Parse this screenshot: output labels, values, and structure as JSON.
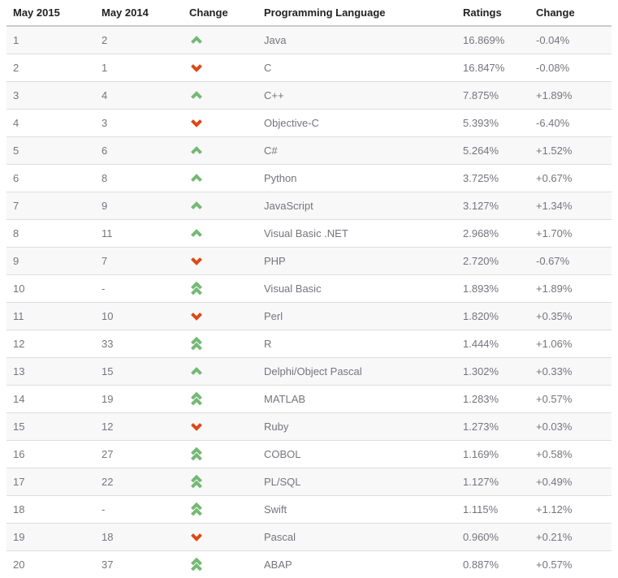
{
  "table": {
    "headers": {
      "rank_2015": "May 2015",
      "rank_2014": "May 2014",
      "change_arrow": "Change",
      "language": "Programming Language",
      "ratings": "Ratings",
      "change_pct": "Change"
    },
    "rows": [
      {
        "rank_2015": "1",
        "rank_2014": "2",
        "direction": "up",
        "language": "Java",
        "ratings": "16.869%",
        "change": "-0.04%"
      },
      {
        "rank_2015": "2",
        "rank_2014": "1",
        "direction": "down",
        "language": "C",
        "ratings": "16.847%",
        "change": "-0.08%"
      },
      {
        "rank_2015": "3",
        "rank_2014": "4",
        "direction": "up",
        "language": "C++",
        "ratings": "7.875%",
        "change": "+1.89%"
      },
      {
        "rank_2015": "4",
        "rank_2014": "3",
        "direction": "down",
        "language": "Objective-C",
        "ratings": "5.393%",
        "change": "-6.40%"
      },
      {
        "rank_2015": "5",
        "rank_2014": "6",
        "direction": "up",
        "language": "C#",
        "ratings": "5.264%",
        "change": "+1.52%"
      },
      {
        "rank_2015": "6",
        "rank_2014": "8",
        "direction": "up",
        "language": "Python",
        "ratings": "3.725%",
        "change": "+0.67%"
      },
      {
        "rank_2015": "7",
        "rank_2014": "9",
        "direction": "up",
        "language": "JavaScript",
        "ratings": "3.127%",
        "change": "+1.34%"
      },
      {
        "rank_2015": "8",
        "rank_2014": "11",
        "direction": "up",
        "language": "Visual Basic .NET",
        "ratings": "2.968%",
        "change": "+1.70%"
      },
      {
        "rank_2015": "9",
        "rank_2014": "7",
        "direction": "down",
        "language": "PHP",
        "ratings": "2.720%",
        "change": "-0.67%"
      },
      {
        "rank_2015": "10",
        "rank_2014": "-",
        "direction": "up2",
        "language": "Visual Basic",
        "ratings": "1.893%",
        "change": "+1.89%"
      },
      {
        "rank_2015": "11",
        "rank_2014": "10",
        "direction": "down",
        "language": "Perl",
        "ratings": "1.820%",
        "change": "+0.35%"
      },
      {
        "rank_2015": "12",
        "rank_2014": "33",
        "direction": "up2",
        "language": "R",
        "ratings": "1.444%",
        "change": "+1.06%"
      },
      {
        "rank_2015": "13",
        "rank_2014": "15",
        "direction": "up",
        "language": "Delphi/Object Pascal",
        "ratings": "1.302%",
        "change": "+0.33%"
      },
      {
        "rank_2015": "14",
        "rank_2014": "19",
        "direction": "up2",
        "language": "MATLAB",
        "ratings": "1.283%",
        "change": "+0.57%"
      },
      {
        "rank_2015": "15",
        "rank_2014": "12",
        "direction": "down",
        "language": "Ruby",
        "ratings": "1.273%",
        "change": "+0.03%"
      },
      {
        "rank_2015": "16",
        "rank_2014": "27",
        "direction": "up2",
        "language": "COBOL",
        "ratings": "1.169%",
        "change": "+0.58%"
      },
      {
        "rank_2015": "17",
        "rank_2014": "22",
        "direction": "up2",
        "language": "PL/SQL",
        "ratings": "1.127%",
        "change": "+0.49%"
      },
      {
        "rank_2015": "18",
        "rank_2014": "-",
        "direction": "up2",
        "language": "Swift",
        "ratings": "1.115%",
        "change": "+1.12%"
      },
      {
        "rank_2015": "19",
        "rank_2014": "18",
        "direction": "down",
        "language": "Pascal",
        "ratings": "0.960%",
        "change": "+0.21%"
      },
      {
        "rank_2015": "20",
        "rank_2014": "37",
        "direction": "up2",
        "language": "ABAP",
        "ratings": "0.887%",
        "change": "+0.57%"
      }
    ]
  },
  "icons": {
    "up": "chevron-up-icon",
    "down": "chevron-down-icon",
    "up2": "double-chevron-up-icon"
  },
  "colors": {
    "up_arrow": "#74b874",
    "down_arrow": "#dd4814",
    "stripe_row_bg": "#f8f8f8",
    "row_border": "#dddddd",
    "header_border": "#cccccc",
    "body_text": "#75757d",
    "header_text": "#222222"
  }
}
